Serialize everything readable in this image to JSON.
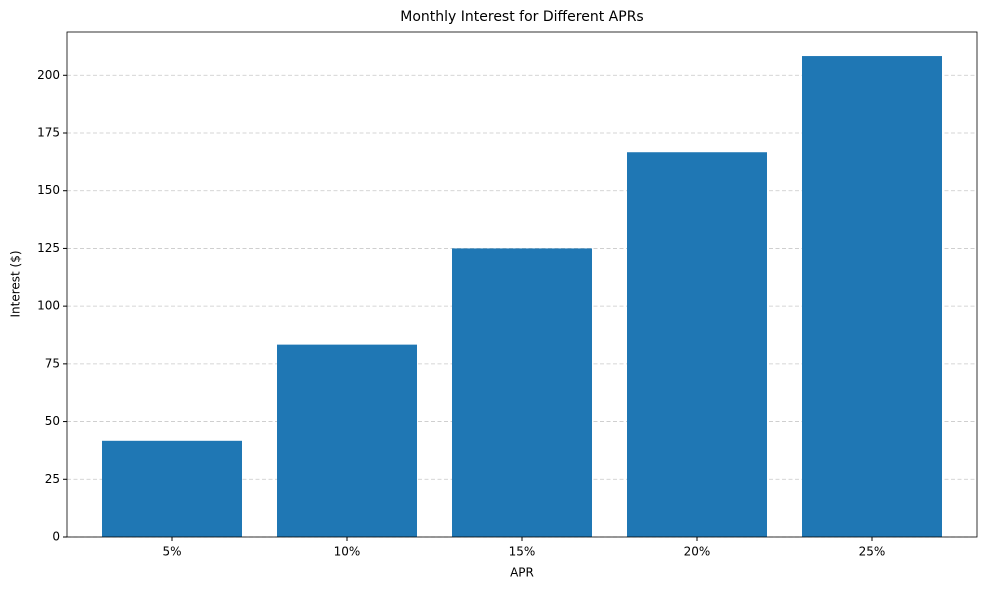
{
  "chart_data": {
    "type": "bar",
    "title": "Monthly Interest for Different APRs",
    "x_label": "APR",
    "y_label": "Interest ($)",
    "categories": [
      "5%",
      "10%",
      "15%",
      "20%",
      "25%"
    ],
    "values": [
      41.67,
      83.33,
      125,
      166.67,
      208.33
    ],
    "color": "#1f77b4",
    "ylim": [
      0,
      218.75
    ],
    "yticks": [
      0,
      25,
      50,
      75,
      100,
      125,
      150,
      175,
      200
    ],
    "grid": true
  }
}
